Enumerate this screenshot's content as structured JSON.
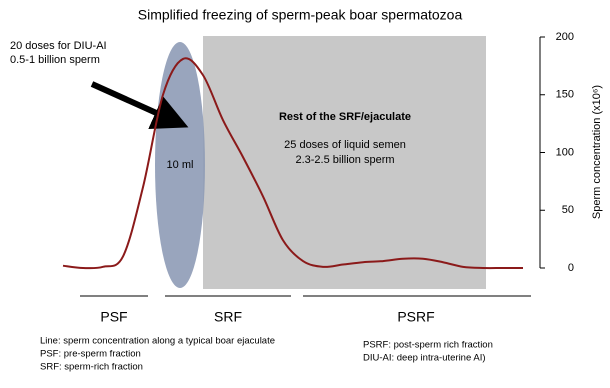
{
  "chart_data": {
    "type": "line",
    "title": "Simplified freezing of sperm-peak boar spermatozoa",
    "ylabel": "Sperm concentration (x10⁶)",
    "y_axis_position": "right",
    "ylim": [
      0,
      200
    ],
    "yticks": [
      0,
      50,
      100,
      150,
      200
    ],
    "categories": [
      null,
      null,
      null,
      null,
      null,
      null,
      null,
      null,
      null,
      null,
      null,
      null,
      null,
      null,
      null,
      null,
      null,
      null,
      null,
      null,
      null,
      null,
      null,
      null
    ],
    "values": [
      2,
      0,
      1,
      10,
      70,
      150,
      181,
      167,
      128,
      96,
      62,
      24,
      6,
      1,
      3,
      5,
      6,
      8,
      8,
      5,
      1,
      0,
      0,
      0
    ],
    "color": "#8b1a1a",
    "annotations": {
      "diu_ai": [
        "20 doses for DIU-AI",
        "0.5-1 billion sperm"
      ],
      "volume": "10 ml",
      "rest_title": "Rest of the SRF/ejaculate",
      "rest_body": [
        "25 doses of liquid semen",
        "2.3-2.5 billion sperm"
      ]
    },
    "segments": [
      "PSF",
      "SRF",
      "PSRF"
    ],
    "footnotes_left": [
      "Line: sperm concentration along a typical boar ejaculate",
      "PSF: pre-sperm fraction",
      "SRF: sperm-rich fraction"
    ],
    "footnotes_right": [
      "PSRF: post-sperm rich fraction",
      "DIU-AI: deep intra-uterine AI)"
    ]
  }
}
